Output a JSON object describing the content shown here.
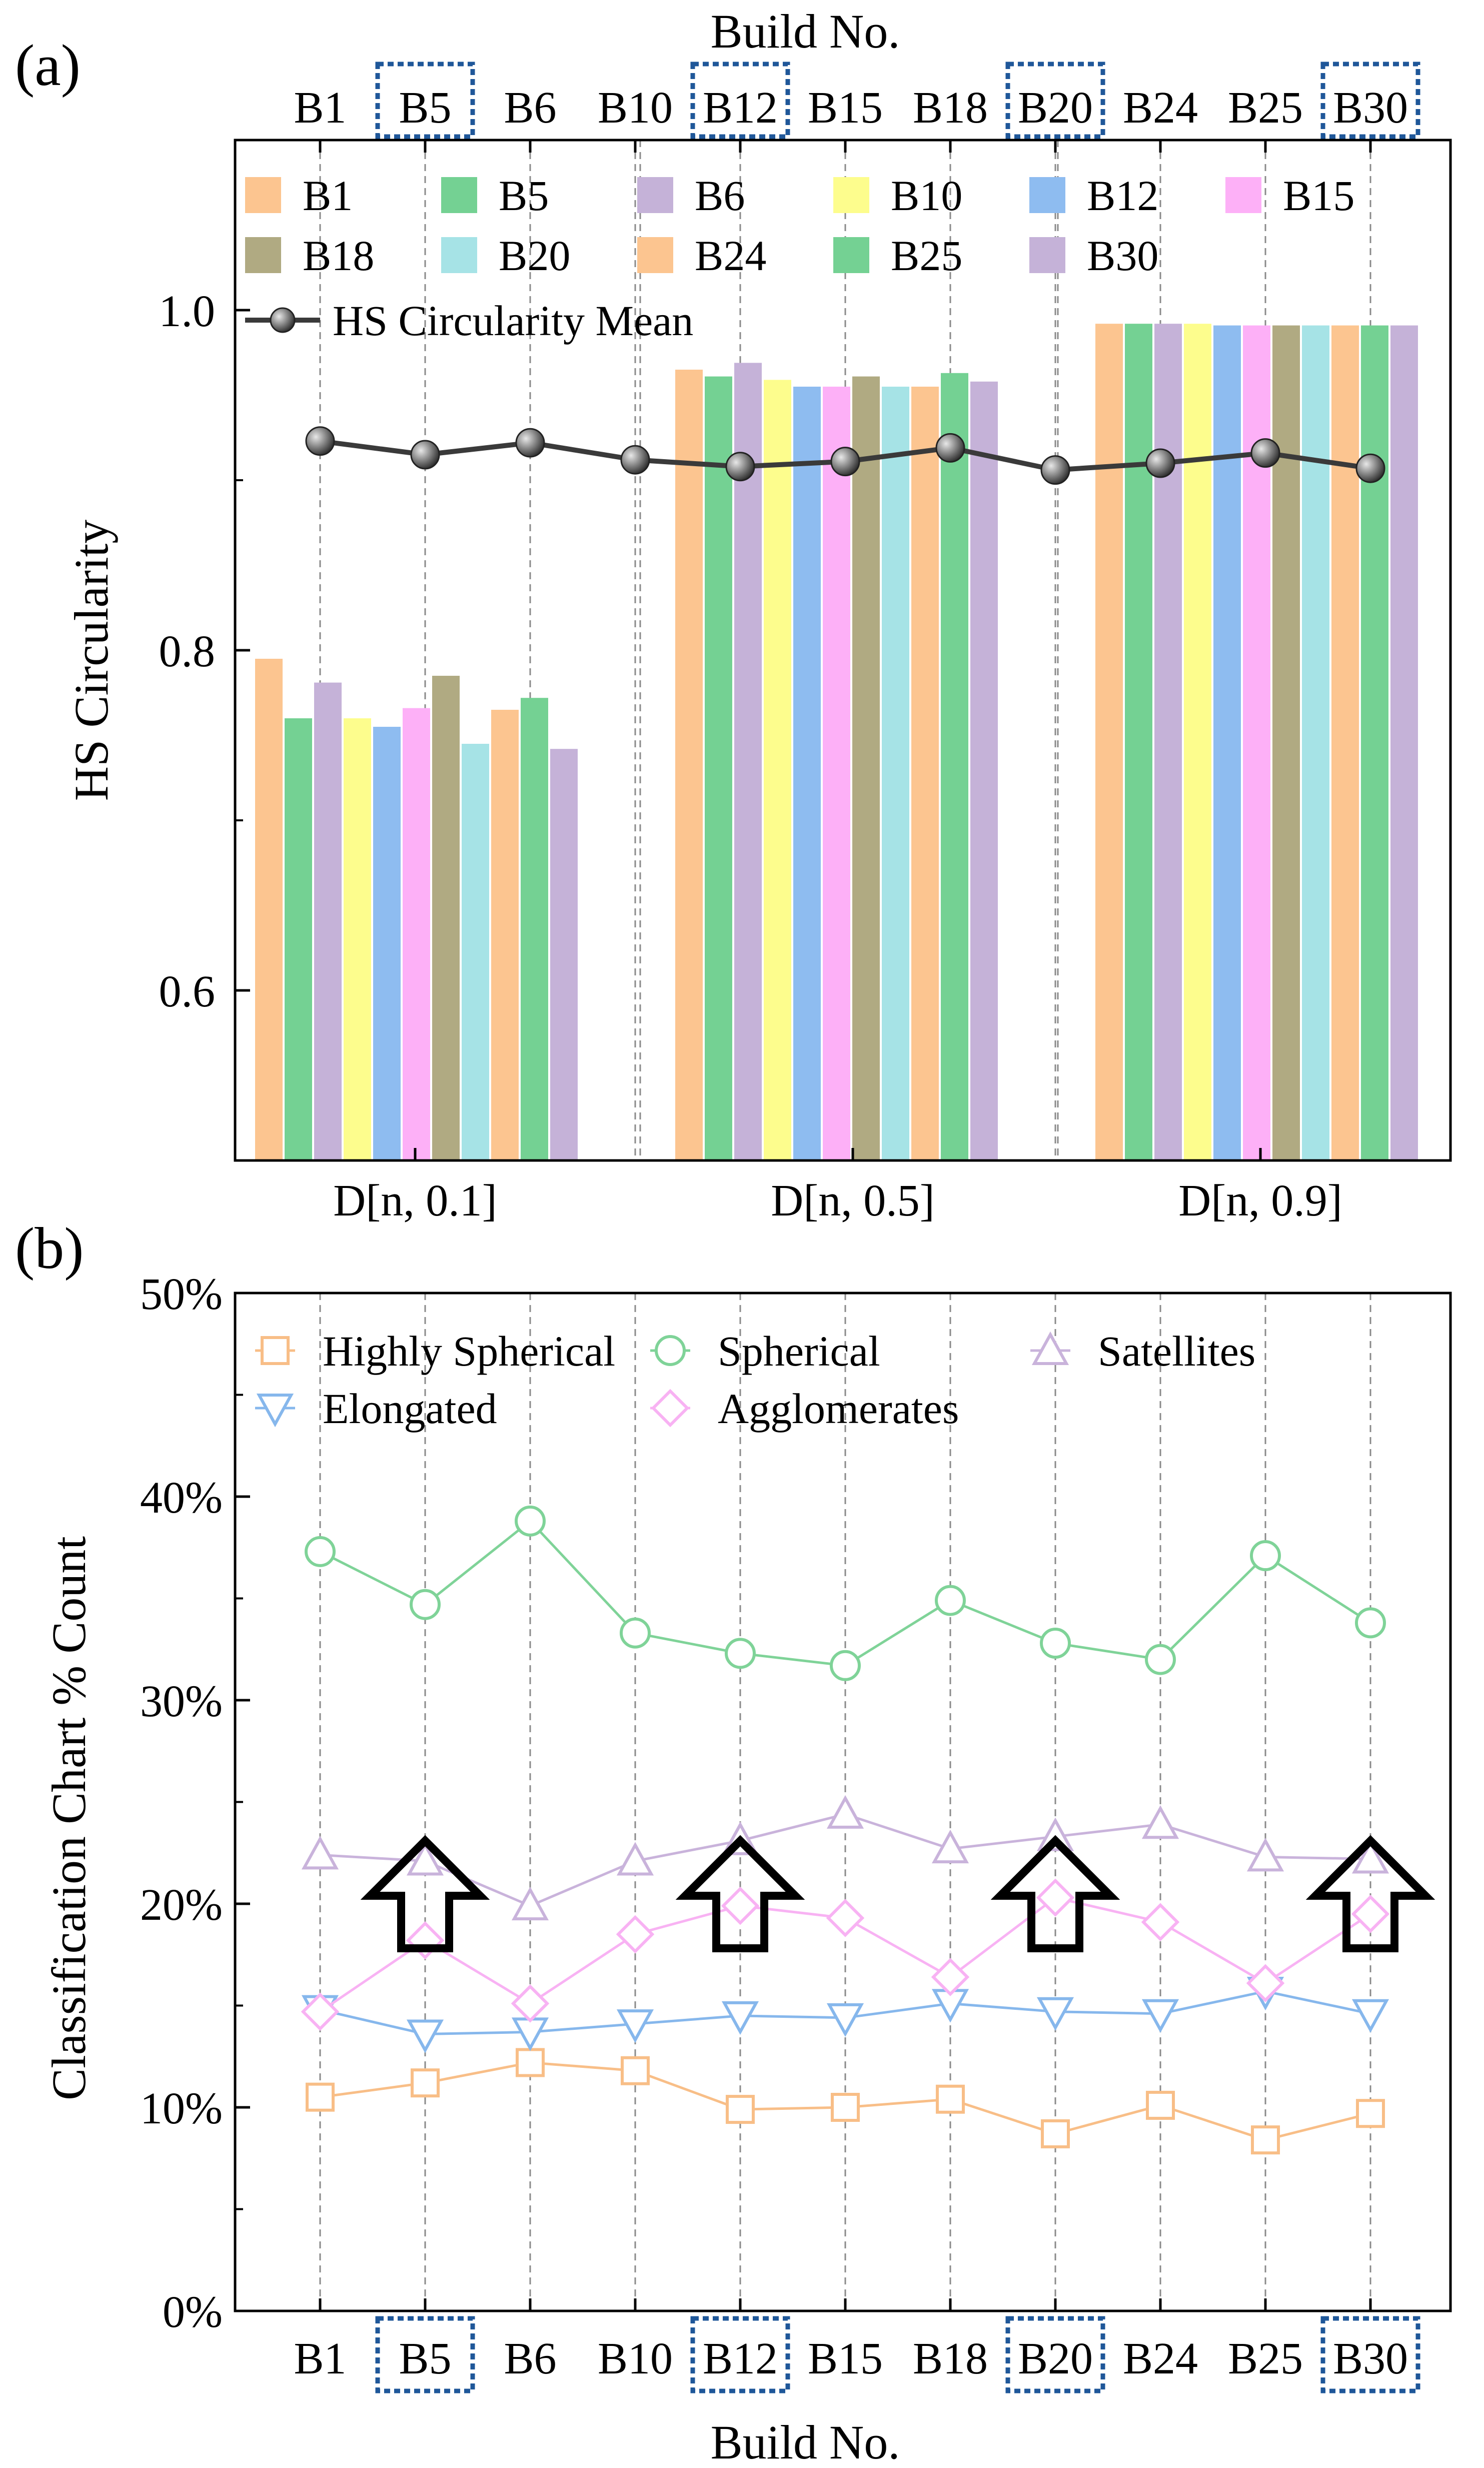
{
  "panel_a_label": "(a)",
  "panel_b_label": "(b)",
  "highlighted_builds": [
    "B5",
    "B12",
    "B20",
    "B30"
  ],
  "chart_data": [
    {
      "type": "bar",
      "panel": "(a)",
      "title": "",
      "top_xlabel": "Build No.",
      "top_ticks": [
        "B1",
        "B5",
        "B6",
        "B10",
        "B12",
        "B15",
        "B18",
        "B20",
        "B24",
        "B25",
        "B30"
      ],
      "xlabel": "",
      "ylabel": "HS Circularity",
      "ylim": [
        0.5,
        1.1
      ],
      "yticks": [
        0.6,
        0.8,
        1.0
      ],
      "ytick_labels": [
        "0.6",
        "0.8",
        "1.0"
      ],
      "categories": [
        "D[n, 0.1]",
        "D[n, 0.5]",
        "D[n, 0.9]"
      ],
      "series": [
        {
          "name": "B1",
          "color": "#FCC590",
          "values": [
            0.795,
            0.965,
            0.992
          ]
        },
        {
          "name": "B5",
          "color": "#74D193",
          "values": [
            0.76,
            0.961,
            0.992
          ]
        },
        {
          "name": "B6",
          "color": "#C5B2D8",
          "values": [
            0.781,
            0.969,
            0.992
          ]
        },
        {
          "name": "B10",
          "color": "#FDFD8D",
          "values": [
            0.76,
            0.959,
            0.992
          ]
        },
        {
          "name": "B12",
          "color": "#8EBCF0",
          "values": [
            0.755,
            0.955,
            0.991
          ]
        },
        {
          "name": "B15",
          "color": "#FDB0F7",
          "values": [
            0.766,
            0.955,
            0.991
          ]
        },
        {
          "name": "B18",
          "color": "#B0AA82",
          "values": [
            0.785,
            0.961,
            0.991
          ]
        },
        {
          "name": "B20",
          "color": "#A6E3E6",
          "values": [
            0.745,
            0.955,
            0.991
          ]
        },
        {
          "name": "B24",
          "color": "#FCC590",
          "values": [
            0.765,
            0.955,
            0.991
          ]
        },
        {
          "name": "B25",
          "color": "#74D193",
          "values": [
            0.772,
            0.963,
            0.991
          ]
        },
        {
          "name": "B30",
          "color": "#C5B2D8",
          "values": [
            0.742,
            0.958,
            0.991
          ]
        }
      ],
      "mean_line": {
        "name": "HS Circularity Mean",
        "color": "#3a3a3a",
        "x": [
          "B1",
          "B5",
          "B6",
          "B10",
          "B12",
          "B15",
          "B18",
          "B20",
          "B24",
          "B25",
          "B30"
        ],
        "values": [
          0.923,
          0.915,
          0.922,
          0.912,
          0.908,
          0.911,
          0.919,
          0.906,
          0.91,
          0.916,
          0.907
        ]
      },
      "grid": "vertical dashed",
      "legend_position": "top-left"
    },
    {
      "type": "line",
      "panel": "(b)",
      "title": "",
      "xlabel": "Build No.",
      "ylabel": "Classification Chart % Count",
      "ylim": [
        0,
        50
      ],
      "yticks": [
        0,
        10,
        20,
        30,
        40,
        50
      ],
      "ytick_labels": [
        "0%",
        "10%",
        "20%",
        "30%",
        "40%",
        "50%"
      ],
      "x": [
        "B1",
        "B5",
        "B6",
        "B10",
        "B12",
        "B15",
        "B18",
        "B20",
        "B24",
        "B25",
        "B30"
      ],
      "series": [
        {
          "name": "Highly Spherical",
          "color": "#F8BE87",
          "marker": "square",
          "values": [
            10.5,
            11.2,
            12.2,
            11.8,
            9.9,
            10.0,
            10.4,
            8.7,
            10.1,
            8.4,
            9.7
          ]
        },
        {
          "name": "Spherical",
          "color": "#7FD398",
          "marker": "circle",
          "values": [
            37.3,
            34.7,
            38.8,
            33.3,
            32.3,
            31.7,
            34.9,
            32.8,
            32.0,
            37.1,
            33.8
          ]
        },
        {
          "name": "Satellites",
          "color": "#C9B3DB",
          "marker": "triangle-up",
          "values": [
            22.4,
            22.1,
            19.9,
            22.1,
            23.1,
            24.4,
            22.7,
            23.3,
            23.9,
            22.3,
            22.2
          ]
        },
        {
          "name": "Elongated",
          "color": "#86B7EC",
          "marker": "triangle-down",
          "values": [
            14.8,
            13.6,
            13.7,
            14.1,
            14.5,
            14.4,
            15.1,
            14.7,
            14.6,
            15.7,
            14.6
          ]
        },
        {
          "name": "Agglomerates",
          "color": "#F8B2F3",
          "marker": "diamond",
          "values": [
            14.7,
            18.2,
            15.1,
            18.5,
            19.9,
            19.3,
            16.4,
            20.3,
            19.1,
            16.1,
            19.5
          ]
        }
      ],
      "annotations": [
        {
          "type": "up-arrow",
          "x": "B5"
        },
        {
          "type": "up-arrow",
          "x": "B12"
        },
        {
          "type": "up-arrow",
          "x": "B20"
        },
        {
          "type": "up-arrow",
          "x": "B30"
        }
      ],
      "grid": "vertical dashed",
      "legend_position": "top"
    }
  ]
}
